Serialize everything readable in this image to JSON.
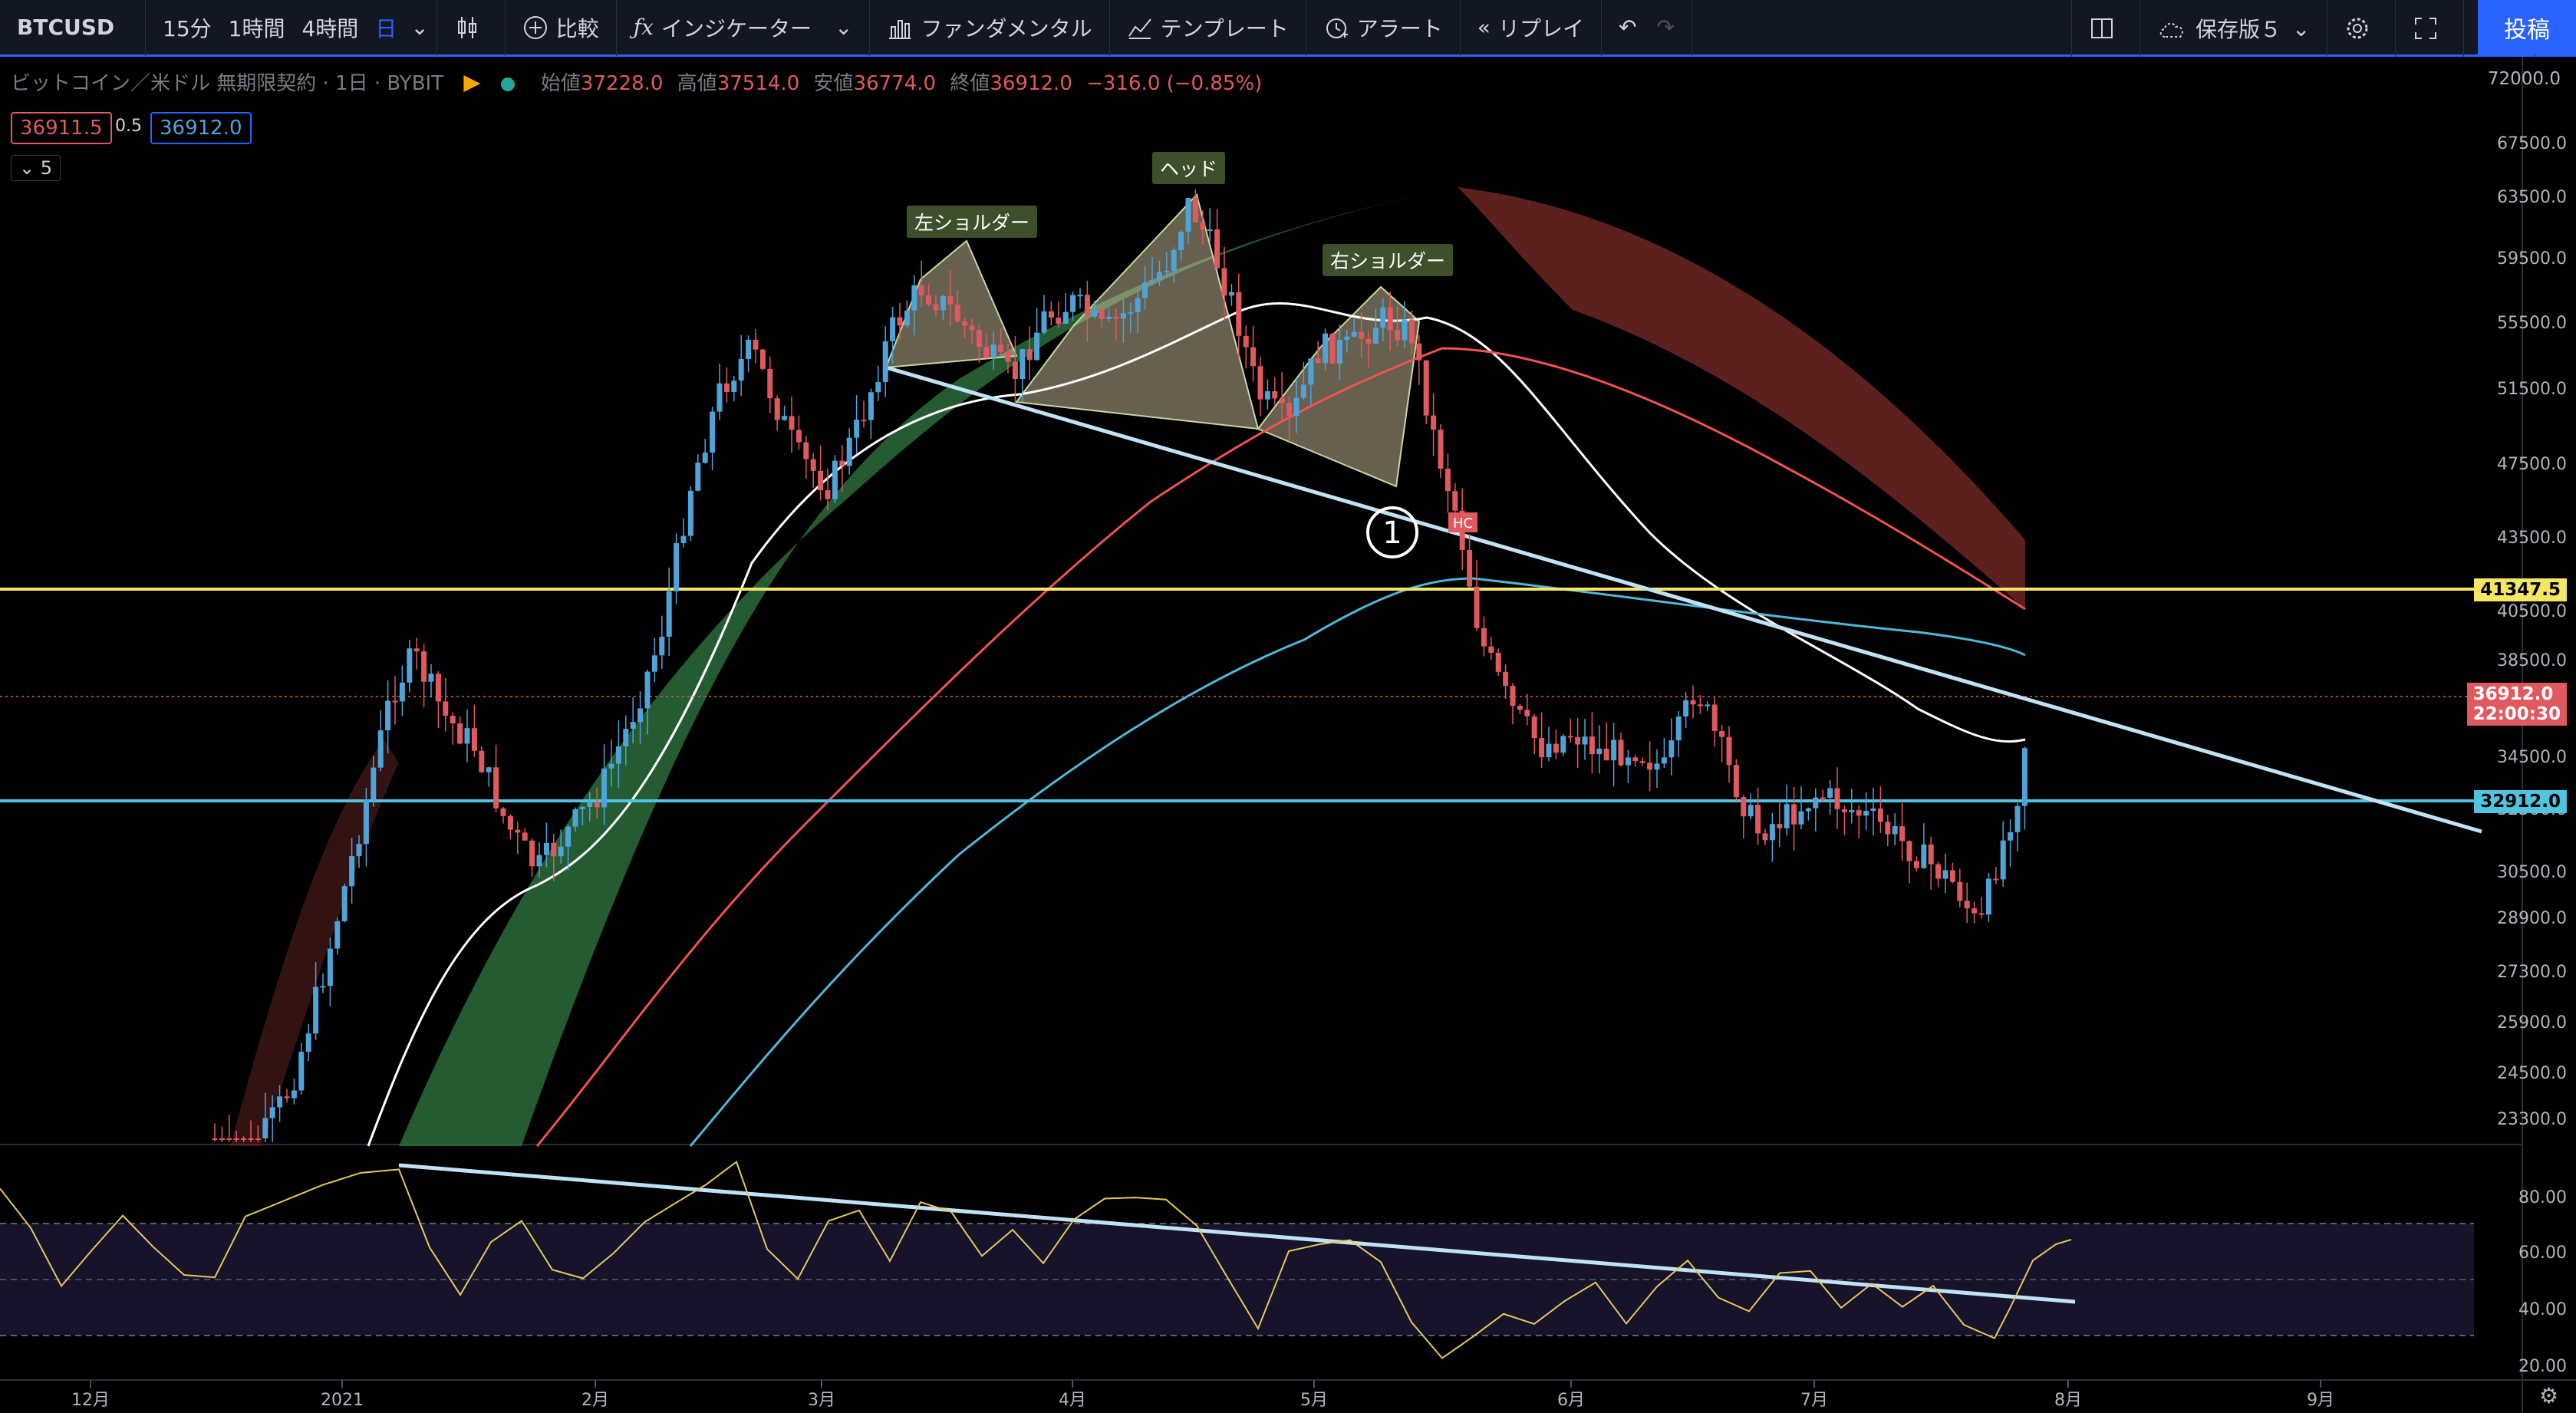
{
  "toolbar": {
    "symbol": "BTCUSD",
    "intervals": [
      "15分",
      "1時間",
      "4時間",
      "日"
    ],
    "active_interval": "日",
    "compare": "比較",
    "indicators": "インジケーター",
    "fundamentals": "ファンダメンタル",
    "templates": "テンプレート",
    "alert": "アラート",
    "replay": "リプレイ",
    "save_layout": "保存版５",
    "post": "投稿"
  },
  "legend": {
    "title": "ビットコイン／米ドル 無期限契約 · 1日 · BYBIT",
    "open_label": "始値",
    "open": "37228.0",
    "high_label": "高値",
    "high": "37514.0",
    "low_label": "安値",
    "low": "36774.0",
    "close_label": "終値",
    "close": "36912.0",
    "change": "−316.0 (−0.85%)",
    "bid": "36911.5",
    "spread": "0.5",
    "ask": "36912.0",
    "indicator_count": "5"
  },
  "annotations": {
    "left_shoulder": "左ショルダー",
    "head": "ヘッド",
    "right_shoulder": "右ショルダー",
    "marker": "1",
    "hc": "HC"
  },
  "price_axis": {
    "top_label": "72000.0",
    "ticks": [
      "67500.0",
      "63500.0",
      "59500.0",
      "55500.0",
      "51500.0",
      "47500.0",
      "43500.0",
      "40500.0",
      "38500.0",
      "34500.0",
      "32500.0",
      "30500.0",
      "28900.0",
      "27300.0",
      "25900.0",
      "24500.0",
      "23300.0"
    ],
    "level_yellow": "41347.5",
    "current_price": "36912.0",
    "countdown": "22:00:30",
    "level_cyan": "32912.0"
  },
  "rsi_axis": {
    "ticks": [
      "80.00",
      "60.00",
      "40.00",
      "20.00"
    ],
    "upper": 70,
    "lower": 30
  },
  "time_axis": [
    "12月",
    "2021",
    "2月",
    "3月",
    "4月",
    "5月",
    "6月",
    "7月",
    "8月",
    "9月"
  ],
  "colors": {
    "up": "#4fa3d8",
    "down": "#e0595f",
    "yellow": "#f5e663",
    "cyan": "#4fc3e0",
    "trend": "#bfe3f5",
    "ma_red": "#f05350",
    "ma_white": "#ffffff",
    "ma_blue": "#4fb8d8",
    "cloud_green": "#2a6b3a",
    "cloud_red": "#a83a36",
    "rsi": "#e8c85a"
  }
}
